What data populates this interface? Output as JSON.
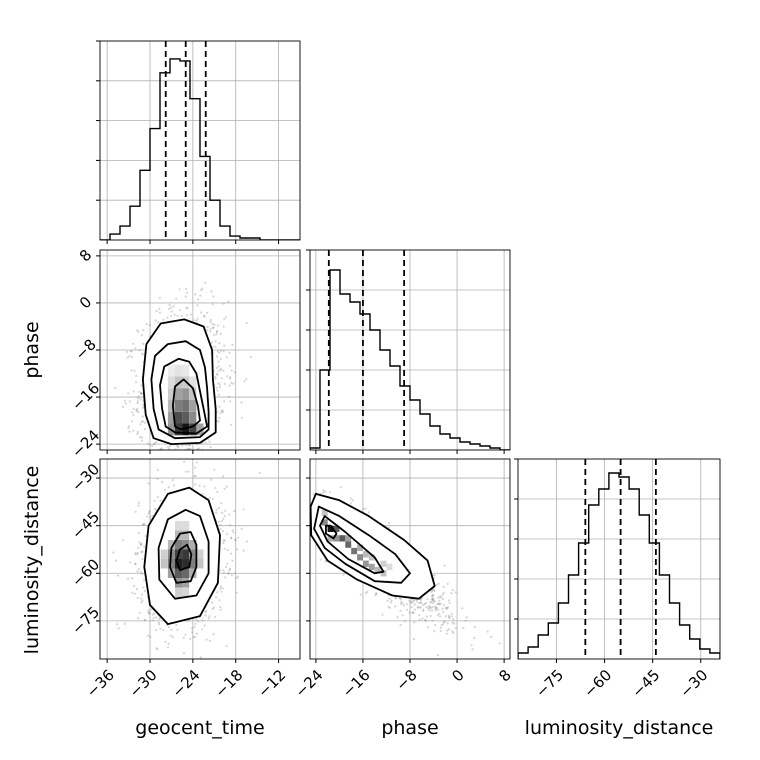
{
  "chart_data": {
    "type": "corner",
    "parameters": [
      "geocent_time",
      "phase",
      "luminosity_distance"
    ],
    "ranges": {
      "geocent_time": [
        -37.0,
        -9.0
      ],
      "phase": [
        -25.0,
        9.0
      ],
      "luminosity_distance": [
        -87.0,
        -24.0
      ]
    },
    "ticks": {
      "geocent_time": [
        -36,
        -30,
        -24,
        -18,
        -12
      ],
      "phase": [
        -24,
        -16,
        -8,
        0,
        8
      ],
      "luminosity_distance": [
        -75,
        -60,
        -45,
        -30
      ]
    },
    "tick_labels": {
      "geocent_time": [
        "−36",
        "−30",
        "−24",
        "−18",
        "−12"
      ],
      "phase_x": [
        "−24",
        "−16",
        "−8",
        "0",
        "8"
      ],
      "phase_y": [
        "8",
        "0",
        "−8",
        "−16",
        "−24"
      ],
      "luminosity_distance_x": [
        "−75",
        "−60",
        "−45",
        "−30"
      ],
      "luminosity_distance_y": [
        "−30",
        "−45",
        "−60",
        "−75"
      ]
    },
    "marginals": {
      "geocent_time": {
        "bin_start": -37.0,
        "bin_width": 1.4,
        "counts": [
          0,
          0.03,
          0.07,
          0.17,
          0.35,
          0.56,
          0.84,
          0.91,
          0.9,
          0.71,
          0.42,
          0.2,
          0.07,
          0.02,
          0.01,
          0.01,
          0,
          0,
          0,
          0
        ],
        "quantiles": [
          -27.8,
          -25.0,
          -22.2
        ]
      },
      "phase": {
        "bin_start": -25.0,
        "bin_width": 1.7,
        "counts": [
          0.01,
          0.4,
          0.9,
          0.78,
          0.74,
          0.68,
          0.6,
          0.5,
          0.42,
          0.32,
          0.25,
          0.18,
          0.12,
          0.08,
          0.06,
          0.04,
          0.03,
          0.02,
          0.01,
          0
        ],
        "quantiles": [
          -21.8,
          -16.0,
          -9.0
        ]
      },
      "luminosity_distance": {
        "bin_start": -87.0,
        "bin_width": 3.15,
        "counts": [
          0.03,
          0.06,
          0.12,
          0.18,
          0.28,
          0.42,
          0.58,
          0.77,
          0.85,
          0.93,
          0.91,
          0.85,
          0.72,
          0.58,
          0.42,
          0.28,
          0.17,
          0.1,
          0.05,
          0.03
        ],
        "quantiles": [
          -66.0,
          -55.0,
          -44.0
        ]
      }
    },
    "joint": {
      "phase_vs_geocent_time": {
        "x": "geocent_time",
        "y": "phase",
        "contours": [
          [
            [
              -25.7,
              -21.5
            ],
            [
              -24.0,
              -21.0
            ],
            [
              -23.0,
              -20.0
            ],
            [
              -23.3,
              -17.5
            ],
            [
              -24.0,
              -14.5
            ],
            [
              -25.3,
              -13.0
            ],
            [
              -26.5,
              -14.2
            ],
            [
              -26.8,
              -17.5
            ],
            [
              -26.5,
              -21.0
            ]
          ],
          [
            [
              -26.5,
              -22.0
            ],
            [
              -23.5,
              -22.2
            ],
            [
              -22.0,
              -21.0
            ],
            [
              -22.5,
              -18.0
            ],
            [
              -23.0,
              -15.0
            ],
            [
              -23.5,
              -12.0
            ],
            [
              -24.5,
              -10.0
            ],
            [
              -26.0,
              -9.5
            ],
            [
              -28.0,
              -10.8
            ],
            [
              -28.6,
              -14.0
            ],
            [
              -28.3,
              -18.0
            ],
            [
              -27.8,
              -21.0
            ]
          ],
          [
            [
              -26.5,
              -23.0
            ],
            [
              -23.0,
              -22.8
            ],
            [
              -21.8,
              -21.5
            ],
            [
              -21.8,
              -18.5
            ],
            [
              -22.0,
              -14.5
            ],
            [
              -22.3,
              -11.0
            ],
            [
              -23.0,
              -8.0
            ],
            [
              -25.0,
              -6.5
            ],
            [
              -27.5,
              -7.0
            ],
            [
              -29.3,
              -9.0
            ],
            [
              -29.8,
              -13.0
            ],
            [
              -29.5,
              -18.0
            ],
            [
              -28.8,
              -21.5
            ]
          ],
          [
            [
              -27.0,
              -24.0
            ],
            [
              -23.0,
              -23.8
            ],
            [
              -20.8,
              -22.0
            ],
            [
              -20.8,
              -18.0
            ],
            [
              -21.2,
              -13.0
            ],
            [
              -21.3,
              -8.0
            ],
            [
              -22.5,
              -4.0
            ],
            [
              -25.2,
              -2.8
            ],
            [
              -28.5,
              -3.5
            ],
            [
              -30.5,
              -7.0
            ],
            [
              -31.0,
              -13.0
            ],
            [
              -30.6,
              -19.0
            ],
            [
              -29.5,
              -23.0
            ]
          ]
        ],
        "density_cells": [
          [
            -26,
            -21.5,
            0.85
          ],
          [
            -25,
            -21.5,
            1.0
          ],
          [
            -24,
            -21.5,
            0.8
          ],
          [
            -27,
            -21.5,
            0.45
          ],
          [
            -23,
            -21.5,
            0.4
          ],
          [
            -26,
            -19.5,
            0.75
          ],
          [
            -25,
            -19.5,
            0.7
          ],
          [
            -24,
            -19.5,
            0.5
          ],
          [
            -27,
            -19.5,
            0.4
          ],
          [
            -26,
            -17.5,
            0.55
          ],
          [
            -25,
            -17.5,
            0.6
          ],
          [
            -24,
            -17.5,
            0.4
          ],
          [
            -27,
            -17.5,
            0.3
          ],
          [
            -26,
            -15.5,
            0.4
          ],
          [
            -25,
            -15.5,
            0.45
          ],
          [
            -24,
            -15.5,
            0.25
          ],
          [
            -27,
            -15.5,
            0.22
          ],
          [
            -26,
            -13.5,
            0.25
          ],
          [
            -25,
            -13.5,
            0.22
          ],
          [
            -27,
            -13.5,
            0.15
          ],
          [
            -24,
            -13.5,
            0.12
          ],
          [
            -26,
            -11.5,
            0.12
          ],
          [
            -25,
            -11.5,
            0.1
          ],
          [
            -27,
            -11.5,
            0.08
          ]
        ],
        "scatter_center": [
          -25.5,
          -14.0
        ],
        "scatter_spread": [
          3.0,
          6.5
        ],
        "scatter_corr": 0.1
      },
      "luminosity_distance_vs_geocent_time": {
        "x": "geocent_time",
        "y": "luminosity_distance",
        "contours": [
          [
            [
              -25.8,
              -59.0
            ],
            [
              -24.5,
              -58.0
            ],
            [
              -24.2,
              -54.0
            ],
            [
              -24.8,
              -51.0
            ],
            [
              -25.8,
              -52.5
            ],
            [
              -26.3,
              -56.0
            ]
          ],
          [
            [
              -26.3,
              -63.0
            ],
            [
              -24.3,
              -62.5
            ],
            [
              -23.5,
              -58.0
            ],
            [
              -23.5,
              -51.0
            ],
            [
              -24.3,
              -47.0
            ],
            [
              -25.8,
              -47.5
            ],
            [
              -27.0,
              -52.0
            ],
            [
              -27.2,
              -58.0
            ]
          ],
          [
            [
              -26.5,
              -68.0
            ],
            [
              -23.5,
              -67.0
            ],
            [
              -21.8,
              -60.0
            ],
            [
              -21.8,
              -50.0
            ],
            [
              -23.0,
              -42.0
            ],
            [
              -25.0,
              -40.0
            ],
            [
              -27.5,
              -43.0
            ],
            [
              -28.8,
              -52.0
            ],
            [
              -28.7,
              -62.0
            ]
          ],
          [
            [
              -27.5,
              -76.0
            ],
            [
              -23.0,
              -73.5
            ],
            [
              -20.5,
              -63.0
            ],
            [
              -20.2,
              -48.0
            ],
            [
              -21.8,
              -37.0
            ],
            [
              -24.5,
              -33.0
            ],
            [
              -27.5,
              -35.0
            ],
            [
              -30.2,
              -45.0
            ],
            [
              -30.8,
              -58.0
            ],
            [
              -30.0,
              -70.0
            ]
          ]
        ],
        "density_cells": [
          [
            -26,
            -57,
            0.95
          ],
          [
            -25,
            -57,
            0.9
          ],
          [
            -26,
            -54,
            0.8
          ],
          [
            -25,
            -54,
            0.85
          ],
          [
            -26,
            -60,
            0.7
          ],
          [
            -25,
            -60,
            0.65
          ],
          [
            -27,
            -57,
            0.55
          ],
          [
            -24,
            -57,
            0.55
          ],
          [
            -27,
            -54,
            0.5
          ],
          [
            -24,
            -54,
            0.5
          ],
          [
            -26,
            -51,
            0.55
          ],
          [
            -25,
            -51,
            0.5
          ],
          [
            -26,
            -63,
            0.45
          ],
          [
            -25,
            -63,
            0.4
          ],
          [
            -27,
            -60,
            0.4
          ],
          [
            -24,
            -60,
            0.35
          ],
          [
            -27,
            -51,
            0.3
          ],
          [
            -24,
            -51,
            0.35
          ],
          [
            -26,
            -48,
            0.3
          ],
          [
            -25,
            -48,
            0.3
          ],
          [
            -23,
            -57,
            0.25
          ],
          [
            -28,
            -57,
            0.25
          ],
          [
            -23,
            -54,
            0.2
          ],
          [
            -28,
            -54,
            0.2
          ],
          [
            -26,
            -66,
            0.2
          ],
          [
            -25,
            -66,
            0.18
          ],
          [
            -26,
            -45,
            0.15
          ],
          [
            -25,
            -45,
            0.15
          ]
        ],
        "scatter_center": [
          -25.5,
          -55.0
        ],
        "scatter_spread": [
          3.0,
          10.5
        ],
        "scatter_corr": 0.1
      },
      "luminosity_distance_vs_phase": {
        "x": "phase",
        "y": "luminosity_distance",
        "contours": [
          [
            [
              -21.5,
              -45.0
            ],
            [
              -20.5,
              -47.5
            ],
            [
              -21.0,
              -49.0
            ],
            [
              -22.3,
              -47.5
            ],
            [
              -22.3,
              -45.0
            ]
          ],
          [
            [
              -22.5,
              -42.0
            ],
            [
              -19.0,
              -47.0
            ],
            [
              -14.0,
              -55.0
            ],
            [
              -12.5,
              -59.5
            ],
            [
              -14.0,
              -60.0
            ],
            [
              -18.5,
              -55.5
            ],
            [
              -22.0,
              -50.0
            ],
            [
              -23.3,
              -45.0
            ]
          ],
          [
            [
              -23.5,
              -39.0
            ],
            [
              -20.0,
              -42.0
            ],
            [
              -15.0,
              -48.0
            ],
            [
              -10.5,
              -54.0
            ],
            [
              -8.0,
              -60.0
            ],
            [
              -9.5,
              -63.0
            ],
            [
              -14.0,
              -62.5
            ],
            [
              -19.0,
              -57.0
            ],
            [
              -22.5,
              -52.0
            ],
            [
              -24.3,
              -46.0
            ]
          ],
          [
            [
              -24.0,
              -35.0
            ],
            [
              -20.0,
              -37.0
            ],
            [
              -15.0,
              -42.0
            ],
            [
              -9.0,
              -49.5
            ],
            [
              -5.0,
              -56.0
            ],
            [
              -3.8,
              -64.0
            ],
            [
              -6.5,
              -68.0
            ],
            [
              -11.0,
              -67.0
            ],
            [
              -17.0,
              -62.0
            ],
            [
              -22.0,
              -56.0
            ],
            [
              -24.8,
              -48.0
            ],
            [
              -24.9,
              -39.0
            ]
          ]
        ],
        "density_cells": [
          [
            -21.5,
            -46,
            1.0
          ],
          [
            -20.5,
            -46,
            0.7
          ],
          [
            -22.5,
            -44,
            0.5
          ],
          [
            -19.5,
            -49,
            0.7
          ],
          [
            -18.5,
            -51,
            0.65
          ],
          [
            -17.5,
            -53,
            0.6
          ],
          [
            -16.5,
            -55,
            0.5
          ],
          [
            -15.5,
            -57,
            0.45
          ],
          [
            -14.5,
            -58,
            0.4
          ],
          [
            -13.5,
            -59,
            0.3
          ],
          [
            -20.5,
            -49,
            0.45
          ],
          [
            -18.5,
            -49,
            0.4
          ],
          [
            -21.5,
            -49,
            0.35
          ],
          [
            -16.5,
            -52,
            0.35
          ],
          [
            -15.5,
            -54,
            0.3
          ],
          [
            -14.5,
            -55,
            0.25
          ],
          [
            -12.5,
            -57,
            0.2
          ],
          [
            -11.5,
            -58,
            0.15
          ],
          [
            -22.5,
            -41,
            0.25
          ],
          [
            -12.5,
            -60,
            0.25
          ]
        ],
        "scatter_center": [
          -14.0,
          -55.0
        ],
        "scatter_spread": [
          6.5,
          10.0
        ],
        "scatter_corr": -0.88
      }
    }
  },
  "colors": {
    "ink": "#000000",
    "grid": "#b0b0b0",
    "scatter": "#888888"
  }
}
